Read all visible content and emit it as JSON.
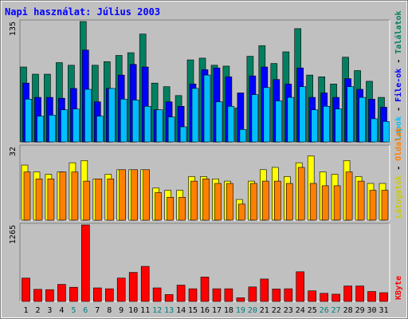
{
  "chart_data": {
    "type": "bar",
    "title": "Napi használat: Július 2003",
    "title_color": "#0000ff",
    "frame_color": "#c0c0c0",
    "panel_color": "#c0c0c0",
    "categories": [
      "1",
      "2",
      "3",
      "4",
      "5",
      "6",
      "7",
      "8",
      "9",
      "10",
      "11",
      "12",
      "13",
      "14",
      "15",
      "16",
      "17",
      "18",
      "19",
      "20",
      "21",
      "22",
      "23",
      "24",
      "25",
      "26",
      "27",
      "28",
      "29",
      "30",
      "31"
    ],
    "weekend_days": [
      "5",
      "6",
      "12",
      "13",
      "19",
      "20",
      "26",
      "27"
    ],
    "category_color": "#000000",
    "weekend_color": "#008080",
    "panels": [
      {
        "ymax_label": "135",
        "ylim": [
          0,
          135
        ],
        "legend": [
          {
            "text": "Találatok",
            "color": "#007f5f"
          },
          {
            "text": "File-ok",
            "color": "#0000ff"
          },
          {
            "text": "Lapok",
            "color": "#00bfff"
          }
        ],
        "series": [
          {
            "name": "Találatok",
            "color": "#008060",
            "values": [
              84,
              76,
              76,
              89,
              86,
              135,
              86,
              90,
              97,
              100,
              121,
              66,
              62,
              52,
              92,
              94,
              86,
              85,
              38,
              96,
              108,
              88,
              101,
              127,
              75,
              73,
              65,
              95,
              80,
              68,
              50
            ]
          },
          {
            "name": "File-ok",
            "color": "#0000ff",
            "values": [
              66,
              50,
              50,
              49,
              60,
              103,
              45,
              60,
              75,
              87,
              84,
              36,
              45,
              40,
              65,
              81,
              83,
              73,
              55,
              74,
              84,
              70,
              65,
              83,
              50,
              55,
              50,
              71,
              59,
              48,
              39
            ]
          },
          {
            "name": "Lapok",
            "color": "#00bfff",
            "values": [
              48,
              29,
              30,
              36,
              37,
              59,
              29,
              60,
              48,
              47,
              40,
              36,
              28,
              17,
              60,
              75,
              45,
              40,
              14,
              53,
              61,
              46,
              50,
              62,
              36,
              40,
              37,
              62,
              50,
              26,
              23
            ]
          }
        ]
      },
      {
        "ymax_label": "32",
        "ylim": [
          0,
          32
        ],
        "legend": [
          {
            "text": "Oldalak",
            "color": "#ff8000"
          },
          {
            "text": "Látogatók",
            "color": "#cccc00"
          }
        ],
        "series": [
          {
            "name": "Látogatók",
            "color": "#ffff00",
            "values": [
              24,
              21,
              20,
              21,
              25,
              26,
              18,
              20,
              22,
              22,
              22,
              14,
              13,
              13,
              19,
              19,
              18,
              17,
              9,
              17,
              22,
              23,
              19,
              25,
              28,
              21,
              20,
              26,
              19,
              16,
              16
            ]
          },
          {
            "name": "Oldalak",
            "color": "#ff8000",
            "values": [
              21,
              18,
              18,
              21,
              21,
              17,
              18,
              18,
              22,
              22,
              22,
              12,
              10,
              10,
              17,
              18,
              16,
              16,
              7,
              16,
              17,
              17,
              16,
              23,
              16,
              15,
              15,
              21,
              17,
              13,
              13
            ]
          }
        ]
      },
      {
        "ymax_label": "1265",
        "ylim": [
          0,
          1265
        ],
        "legend": [
          {
            "text": "KByte",
            "color": "#ff0000"
          }
        ],
        "series": [
          {
            "name": "KByte",
            "color": "#ff0000",
            "values": [
              386,
              200,
              195,
              282,
              235,
              1265,
              224,
              210,
              386,
              480,
              580,
              224,
              115,
              270,
              210,
              405,
              210,
              210,
              60,
              240,
              370,
              205,
              210,
              490,
              175,
              135,
              120,
              255,
              255,
              165,
              145
            ]
          }
        ]
      }
    ]
  }
}
